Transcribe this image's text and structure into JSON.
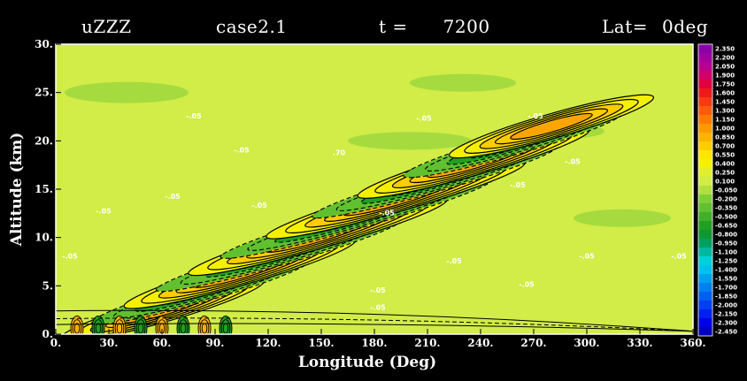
{
  "header": {
    "variable": "uZZZ",
    "case": "case2.1",
    "time_label": "t =",
    "time_value": "7200",
    "lat_label": "Lat=",
    "lat_value": "0deg"
  },
  "chart_data": {
    "type": "heatmap",
    "xlabel": "Longitude (Deg)",
    "ylabel": "Altitude (km)",
    "xlim": [
      0,
      360
    ],
    "ylim": [
      0,
      30
    ],
    "x_ticks": [
      "0.",
      "30.",
      "60.",
      "90.",
      "120.",
      "150.",
      "180.",
      "210.",
      "240.",
      "270.",
      "300.",
      "330.",
      "360."
    ],
    "y_ticks": [
      "0.",
      "5.",
      "10.",
      "15.",
      "20.",
      "25.",
      "30."
    ],
    "colorbar_levels": [
      "2.350",
      "2.200",
      "2.050",
      "1.900",
      "1.750",
      "1.600",
      "1.450",
      "1.300",
      "1.150",
      "1.000",
      "0.850",
      "0.700",
      "0.550",
      "0.400",
      "0.250",
      "0.100",
      "-0.050",
      "-0.200",
      "-0.350",
      "-0.500",
      "-0.650",
      "-0.800",
      "-0.950",
      "-1.100",
      "-1.250",
      "-1.400",
      "-1.550",
      "-1.700",
      "-1.850",
      "-2.000",
      "-2.150",
      "-2.300",
      "-2.450"
    ],
    "colorbar_colors": [
      "#8a00a8",
      "#a000a0",
      "#b80090",
      "#d00068",
      "#e00040",
      "#ef1a1a",
      "#f43c10",
      "#f85c08",
      "#fc7a04",
      "#ff9800",
      "#ffb200",
      "#ffcc00",
      "#ffe600",
      "#f4f000",
      "#e2ee30",
      "#d2ec48",
      "#b0e040",
      "#7fce36",
      "#60c030",
      "#40b028",
      "#20a020",
      "#109830",
      "#00a060",
      "#00b8a0",
      "#00d0d8",
      "#00c0f0",
      "#00a0f0",
      "#0080f0",
      "#0060f0",
      "#0040f0",
      "#0020f0",
      "#0000e8",
      "#0000c0"
    ],
    "contour_labels": [
      {
        "text": "-.05",
        "x": 78,
        "y": 22.3
      },
      {
        "text": "-.05",
        "x": 105,
        "y": 18.8
      },
      {
        "text": "-.05",
        "x": 27,
        "y": 12.5
      },
      {
        "text": "-.05",
        "x": 8,
        "y": 7.8
      },
      {
        "text": "-.05",
        "x": 208,
        "y": 22.1
      },
      {
        "text": "-.05",
        "x": 271,
        "y": 22.3
      },
      {
        "text": "-.05",
        "x": 292,
        "y": 17.6
      },
      {
        "text": "-.05",
        "x": 261,
        "y": 15.2
      },
      {
        "text": "-.05",
        "x": 187,
        "y": 12.3
      },
      {
        "text": "-.05",
        "x": 225,
        "y": 7.3
      },
      {
        "text": "-.05",
        "x": 266,
        "y": 4.9
      },
      {
        "text": "-.05",
        "x": 182,
        "y": 4.3
      },
      {
        "text": "-.05",
        "x": 182,
        "y": 2.5
      },
      {
        "text": "-.05",
        "x": 300,
        "y": 7.8
      },
      {
        "text": "-.05",
        "x": 352,
        "y": 7.8
      },
      {
        "text": "-.05",
        "x": 66,
        "y": 14.0
      },
      {
        "text": "-.05",
        "x": 115,
        "y": 13.1
      },
      {
        "text": ".70",
        "x": 160,
        "y": 18.5
      }
    ]
  }
}
